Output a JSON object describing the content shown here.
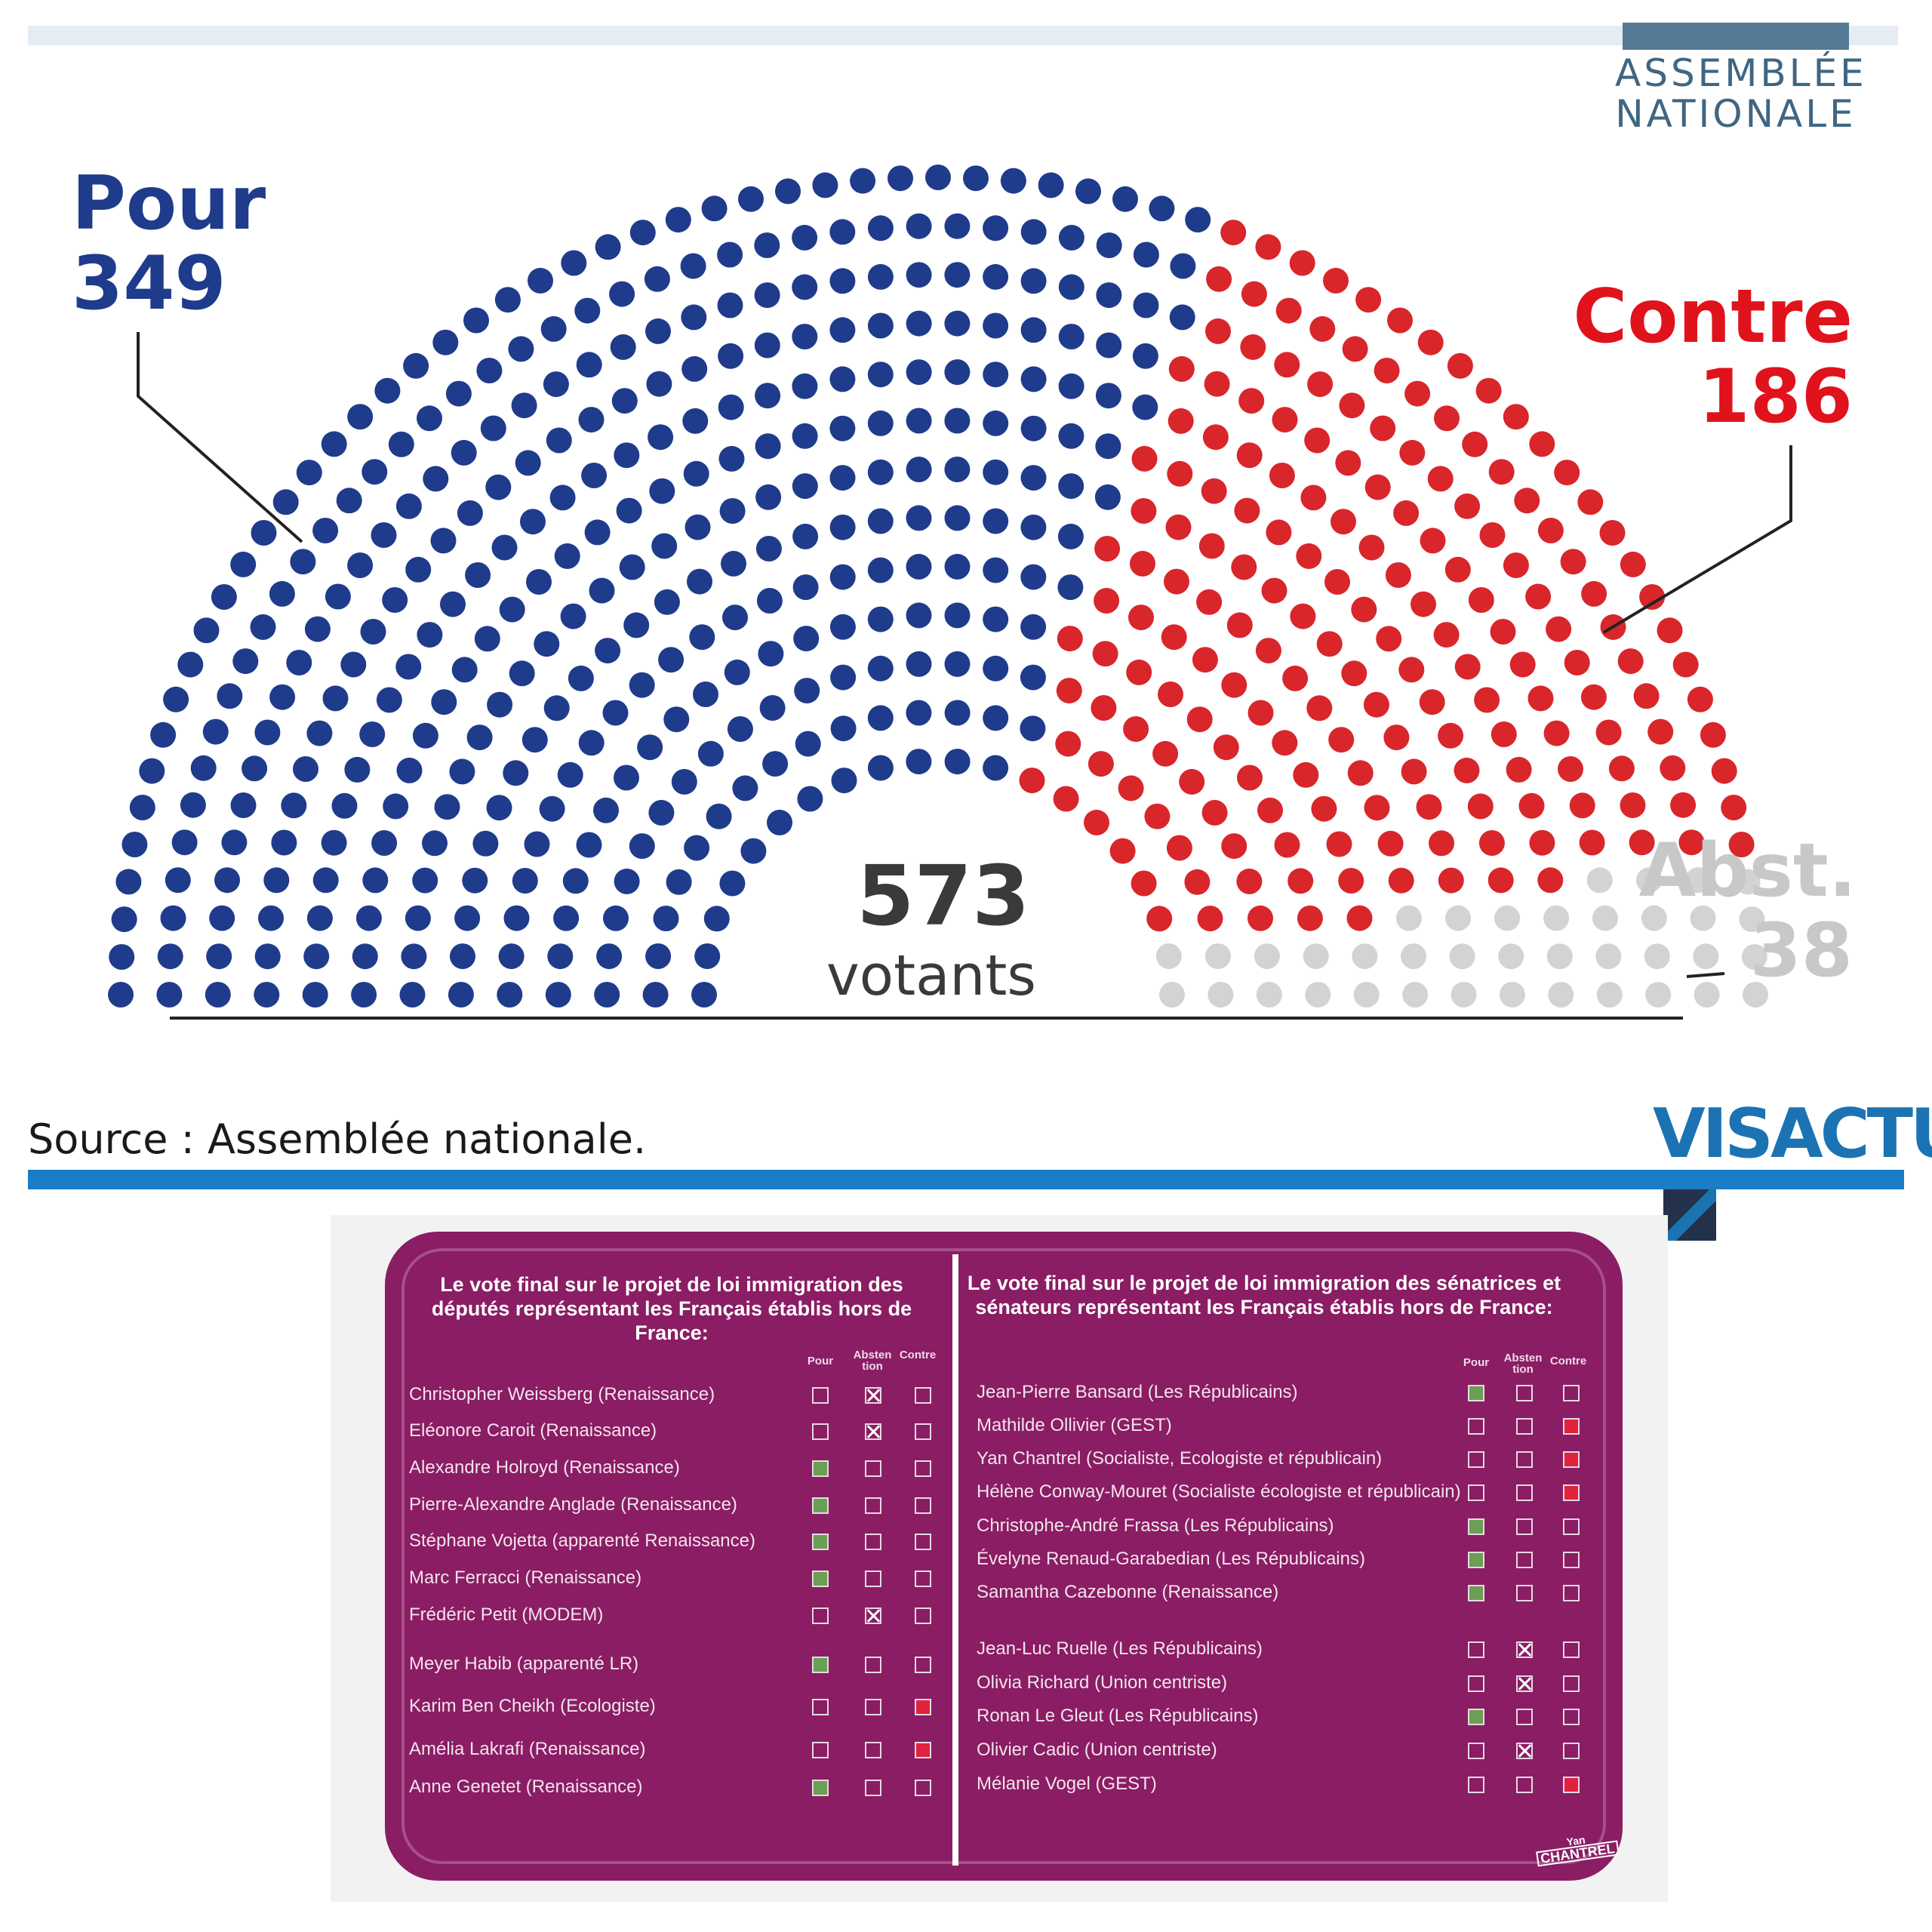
{
  "header": {
    "logo_line1": "ASSEMBLÉE",
    "logo_line2": "NATIONALE"
  },
  "chart_data": [
    {
      "type": "parliament-hemicycle",
      "series": [
        {
          "name": "Pour",
          "value": 349,
          "color": "#1f3b8c"
        },
        {
          "name": "Contre",
          "value": 186,
          "color": "#d9262b"
        },
        {
          "name": "Abst.",
          "value": 38,
          "color": "#d3d3d3"
        }
      ],
      "center_value": "573",
      "center_label": "votants",
      "source": "Source : Assemblée nationale.",
      "publisher": "VISACTU"
    },
    {
      "type": "table",
      "title": "Le vote final sur le projet de loi immigration des députés représentant les Français établis hors de France:",
      "columns": [
        "Pour",
        "Absten tion",
        "Contre"
      ],
      "rows": [
        {
          "name": "Christopher Weissberg (Renaissance)",
          "vote": "Abstention"
        },
        {
          "name": "Eléonore Caroit (Renaissance)",
          "vote": "Abstention"
        },
        {
          "name": "Alexandre Holroyd (Renaissance)",
          "vote": "Pour"
        },
        {
          "name": "Pierre-Alexandre Anglade (Renaissance)",
          "vote": "Pour"
        },
        {
          "name": "Stéphane Vojetta (apparenté Renaissance)",
          "vote": "Pour"
        },
        {
          "name": "Marc Ferracci (Renaissance)",
          "vote": "Pour"
        },
        {
          "name": "Frédéric Petit (MODEM)",
          "vote": "Abstention"
        },
        {
          "name": "Meyer Habib (apparenté LR)",
          "vote": "Pour"
        },
        {
          "name": "Karim Ben Cheikh (Ecologiste)",
          "vote": "Contre"
        },
        {
          "name": "Amélia Lakrafi (Renaissance)",
          "vote": "Contre"
        },
        {
          "name": "Anne Genetet (Renaissance)",
          "vote": "Pour"
        }
      ]
    },
    {
      "type": "table",
      "title": "Le vote final sur le projet de loi immigration des sénatrices et sénateurs représentant les Français établis hors de France:",
      "columns": [
        "Pour",
        "Absten tion",
        "Contre"
      ],
      "rows": [
        {
          "name": "Jean-Pierre Bansard (Les Républicains)",
          "vote": "Pour"
        },
        {
          "name": "Mathilde Ollivier (GEST)",
          "vote": "Contre"
        },
        {
          "name": "Yan Chantrel (Socialiste, Ecologiste et républicain)",
          "vote": "Contre"
        },
        {
          "name": "Hélène Conway-Mouret (Socialiste écologiste et républicain)",
          "vote": "Contre"
        },
        {
          "name": "Christophe-André Frassa (Les Républicains)",
          "vote": "Pour"
        },
        {
          "name": "Évelyne Renaud-Garabedian (Les Républicains)",
          "vote": "Pour"
        },
        {
          "name": "Samantha Cazebonne (Renaissance)",
          "vote": "Pour"
        },
        {
          "name": "Jean-Luc Ruelle (Les Républicains)",
          "vote": "Abstention"
        },
        {
          "name": "Olivia Richard (Union centriste)",
          "vote": "Abstention"
        },
        {
          "name": "Ronan Le Gleut (Les Républicains)",
          "vote": "Pour"
        },
        {
          "name": "Olivier Cadic (Union centriste)",
          "vote": "Abstention"
        },
        {
          "name": "Mélanie Vogel (GEST)",
          "vote": "Contre"
        }
      ]
    }
  ],
  "signature": {
    "line1": "Yan",
    "line2": "CHANTREL"
  }
}
